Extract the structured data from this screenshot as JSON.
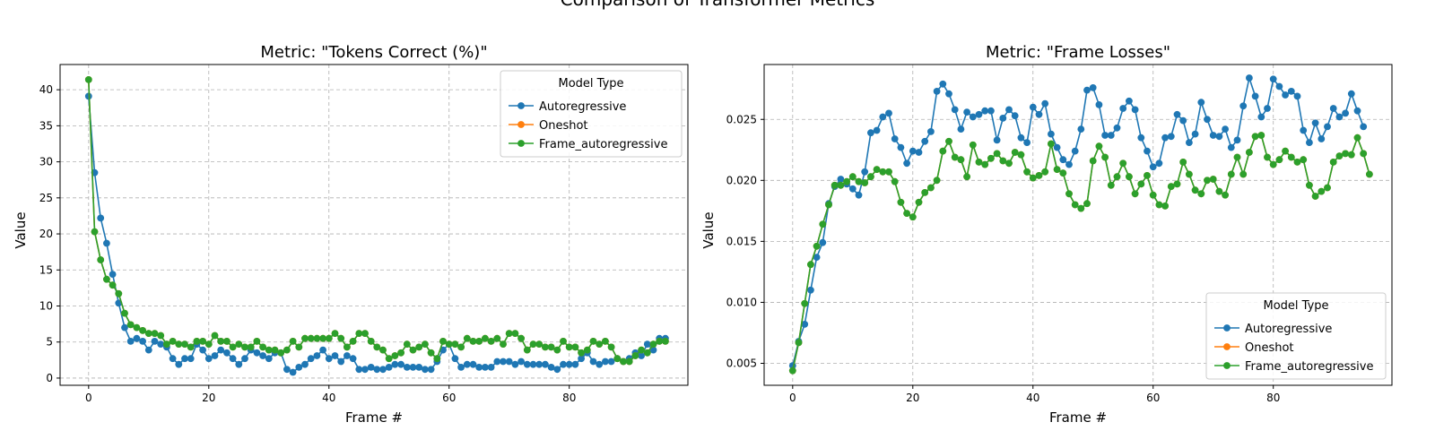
{
  "figure": {
    "title": "Comparison of Transformer Metrics"
  },
  "chart_data": [
    {
      "type": "line",
      "title": "Metric: \"Tokens Correct (%)\"",
      "xlabel": "Frame #",
      "ylabel": "Value",
      "xlim": [
        -4.75,
        99.75
      ],
      "ylim": [
        -1.0,
        43.5
      ],
      "xticks": [
        0,
        20,
        40,
        60,
        80
      ],
      "yticks": [
        0,
        5,
        10,
        15,
        20,
        25,
        30,
        35,
        40
      ],
      "grid": true,
      "legend": {
        "title": "Model Type",
        "placement": "top-right"
      },
      "series": [
        {
          "name": "Autoregressive",
          "color": "#1f77b4",
          "y": [
            39.1,
            28.5,
            22.2,
            18.7,
            14.4,
            10.4,
            7.0,
            5.1,
            5.5,
            5.1,
            3.9,
            5.1,
            4.7,
            4.3,
            2.7,
            1.9,
            2.7,
            2.7,
            4.7,
            3.9,
            2.7,
            3.1,
            3.9,
            3.5,
            2.7,
            1.9,
            2.7,
            3.9,
            3.5,
            3.1,
            2.7,
            3.5,
            3.5,
            1.2,
            0.8,
            1.5,
            1.9,
            2.7,
            3.1,
            3.9,
            2.7,
            3.1,
            2.3,
            3.1,
            2.7,
            1.2,
            1.2,
            1.5,
            1.2,
            1.2,
            1.5,
            1.9,
            1.9,
            1.5,
            1.5,
            1.5,
            1.2,
            1.2,
            2.3,
            3.9,
            4.7,
            2.7,
            1.5,
            1.9,
            1.9,
            1.5,
            1.5,
            1.5,
            2.3,
            2.3,
            2.3,
            1.9,
            2.3,
            1.9,
            1.9,
            1.9,
            1.9,
            1.5,
            1.2,
            1.9,
            1.9,
            1.9,
            2.7,
            3.5,
            2.3,
            1.9,
            2.3,
            2.3,
            2.7,
            2.3,
            2.7,
            3.5,
            3.1,
            4.7,
            3.9,
            5.5,
            5.5
          ]
        },
        {
          "name": "Oneshot",
          "color": "#ff7f0e",
          "y": [
            41.4,
            20.3,
            16.4,
            13.7,
            12.9,
            11.7,
            9.0,
            7.4,
            7.0,
            6.6,
            6.2,
            6.2,
            5.9,
            4.7,
            5.1,
            4.7,
            4.7,
            4.3,
            5.1,
            5.1,
            4.7,
            5.9,
            5.1,
            5.1,
            4.3,
            4.7,
            4.3,
            4.3,
            5.1,
            4.3,
            3.9,
            3.9,
            3.5,
            3.9,
            5.1,
            4.3,
            5.5,
            5.5,
            5.5,
            5.5,
            5.5,
            6.2,
            5.5,
            4.3,
            5.1,
            6.2,
            6.2,
            5.1,
            4.3,
            3.9,
            2.7,
            3.1,
            3.5,
            4.7,
            3.9,
            4.3,
            4.7,
            3.5,
            2.7,
            5.1,
            4.7,
            4.7,
            4.3,
            5.5,
            5.1,
            5.1,
            5.5,
            5.1,
            5.5,
            4.7,
            6.2,
            6.2,
            5.5,
            3.9,
            4.7,
            4.7,
            4.3,
            4.3,
            3.9,
            5.1,
            4.3,
            4.3,
            3.5,
            3.9,
            5.1,
            4.7,
            5.1,
            4.3,
            2.7,
            2.3,
            2.3,
            3.1,
            3.9,
            3.5,
            4.7,
            5.1,
            5.1
          ]
        },
        {
          "name": "Frame_autoregressive",
          "color": "#2ca02c",
          "y": [
            41.4,
            20.3,
            16.4,
            13.7,
            12.9,
            11.7,
            9.0,
            7.4,
            7.0,
            6.6,
            6.2,
            6.2,
            5.9,
            4.7,
            5.1,
            4.7,
            4.7,
            4.3,
            5.1,
            5.1,
            4.7,
            5.9,
            5.1,
            5.1,
            4.3,
            4.7,
            4.3,
            4.3,
            5.1,
            4.3,
            3.9,
            3.9,
            3.5,
            3.9,
            5.1,
            4.3,
            5.5,
            5.5,
            5.5,
            5.5,
            5.5,
            6.2,
            5.5,
            4.3,
            5.1,
            6.2,
            6.2,
            5.1,
            4.3,
            3.9,
            2.7,
            3.1,
            3.5,
            4.7,
            3.9,
            4.3,
            4.7,
            3.5,
            2.7,
            5.1,
            4.7,
            4.7,
            4.3,
            5.5,
            5.1,
            5.1,
            5.5,
            5.1,
            5.5,
            4.7,
            6.2,
            6.2,
            5.5,
            3.9,
            4.7,
            4.7,
            4.3,
            4.3,
            3.9,
            5.1,
            4.3,
            4.3,
            3.5,
            3.9,
            5.1,
            4.7,
            5.1,
            4.3,
            2.7,
            2.3,
            2.3,
            3.1,
            3.9,
            3.5,
            4.7,
            5.1,
            5.1
          ]
        }
      ]
    },
    {
      "type": "line",
      "title": "Metric: \"Frame Losses\"",
      "xlabel": "Frame #",
      "ylabel": "Value",
      "xlim": [
        -4.75,
        99.75
      ],
      "ylim": [
        0.0032,
        0.0295
      ],
      "xticks": [
        0,
        20,
        40,
        60,
        80
      ],
      "yticks": [
        0.005,
        0.01,
        0.015,
        0.02,
        0.025
      ],
      "grid": true,
      "legend": {
        "title": "Model Type",
        "placement": "bottom-right"
      },
      "series": [
        {
          "name": "Autoregressive",
          "color": "#1f77b4",
          "y": [
            0.0048,
            0.0068,
            0.0082,
            0.011,
            0.0137,
            0.0149,
            0.0181,
            0.0195,
            0.0201,
            0.0197,
            0.0193,
            0.0188,
            0.0207,
            0.0239,
            0.0241,
            0.0252,
            0.0255,
            0.0234,
            0.0227,
            0.0214,
            0.0224,
            0.0223,
            0.0232,
            0.024,
            0.0273,
            0.0279,
            0.0271,
            0.0258,
            0.0242,
            0.0256,
            0.0252,
            0.0254,
            0.0257,
            0.0257,
            0.0233,
            0.0251,
            0.0258,
            0.0253,
            0.0235,
            0.0231,
            0.026,
            0.0254,
            0.0263,
            0.0238,
            0.0227,
            0.0217,
            0.0213,
            0.0224,
            0.0242,
            0.0274,
            0.0276,
            0.0262,
            0.0237,
            0.0237,
            0.0243,
            0.0259,
            0.0265,
            0.0258,
            0.0235,
            0.0224,
            0.0211,
            0.0214,
            0.0235,
            0.0236,
            0.0254,
            0.0249,
            0.0231,
            0.0238,
            0.0264,
            0.025,
            0.0237,
            0.0236,
            0.0242,
            0.0227,
            0.0233,
            0.0261,
            0.0284,
            0.0269,
            0.0252,
            0.0259,
            0.0283,
            0.0277,
            0.027,
            0.0273,
            0.0269,
            0.0241,
            0.0231,
            0.0247,
            0.0234,
            0.0244,
            0.0259,
            0.0252,
            0.0255,
            0.0271,
            0.0257,
            0.0244
          ]
        },
        {
          "name": "Oneshot",
          "color": "#ff7f0e",
          "y": [
            0.0044,
            0.0067,
            0.0099,
            0.0131,
            0.0146,
            0.0164,
            0.018,
            0.0196,
            0.0196,
            0.0199,
            0.0203,
            0.0199,
            0.0198,
            0.0203,
            0.0209,
            0.0207,
            0.0207,
            0.0199,
            0.0182,
            0.0173,
            0.017,
            0.0182,
            0.019,
            0.0194,
            0.02,
            0.0224,
            0.0232,
            0.0219,
            0.0217,
            0.0203,
            0.0229,
            0.0215,
            0.0213,
            0.0218,
            0.0222,
            0.0216,
            0.0214,
            0.0223,
            0.0221,
            0.0207,
            0.0202,
            0.0204,
            0.0207,
            0.023,
            0.0209,
            0.0206,
            0.0189,
            0.018,
            0.0177,
            0.0181,
            0.0216,
            0.0228,
            0.0219,
            0.0196,
            0.0203,
            0.0214,
            0.0203,
            0.0189,
            0.0197,
            0.0204,
            0.0188,
            0.018,
            0.0179,
            0.0195,
            0.0197,
            0.0215,
            0.0205,
            0.0192,
            0.0189,
            0.02,
            0.0201,
            0.0191,
            0.0188,
            0.0205,
            0.0219,
            0.0205,
            0.0223,
            0.0236,
            0.0237,
            0.0219,
            0.0213,
            0.0217,
            0.0224,
            0.0219,
            0.0215,
            0.0217,
            0.0196,
            0.0187,
            0.0191,
            0.0194,
            0.0215,
            0.022,
            0.0222,
            0.0221,
            0.0235,
            0.0222,
            0.0205
          ]
        },
        {
          "name": "Frame_autoregressive",
          "color": "#2ca02c",
          "y": [
            0.0044,
            0.0067,
            0.0099,
            0.0131,
            0.0146,
            0.0164,
            0.018,
            0.0196,
            0.0196,
            0.0199,
            0.0203,
            0.0199,
            0.0198,
            0.0203,
            0.0209,
            0.0207,
            0.0207,
            0.0199,
            0.0182,
            0.0173,
            0.017,
            0.0182,
            0.019,
            0.0194,
            0.02,
            0.0224,
            0.0232,
            0.0219,
            0.0217,
            0.0203,
            0.0229,
            0.0215,
            0.0213,
            0.0218,
            0.0222,
            0.0216,
            0.0214,
            0.0223,
            0.0221,
            0.0207,
            0.0202,
            0.0204,
            0.0207,
            0.023,
            0.0209,
            0.0206,
            0.0189,
            0.018,
            0.0177,
            0.0181,
            0.0216,
            0.0228,
            0.0219,
            0.0196,
            0.0203,
            0.0214,
            0.0203,
            0.0189,
            0.0197,
            0.0204,
            0.0188,
            0.018,
            0.0179,
            0.0195,
            0.0197,
            0.0215,
            0.0205,
            0.0192,
            0.0189,
            0.02,
            0.0201,
            0.0191,
            0.0188,
            0.0205,
            0.0219,
            0.0205,
            0.0223,
            0.0236,
            0.0237,
            0.0219,
            0.0213,
            0.0217,
            0.0224,
            0.0219,
            0.0215,
            0.0217,
            0.0196,
            0.0187,
            0.0191,
            0.0194,
            0.0215,
            0.022,
            0.0222,
            0.0221,
            0.0235,
            0.0222,
            0.0205
          ]
        }
      ]
    }
  ]
}
